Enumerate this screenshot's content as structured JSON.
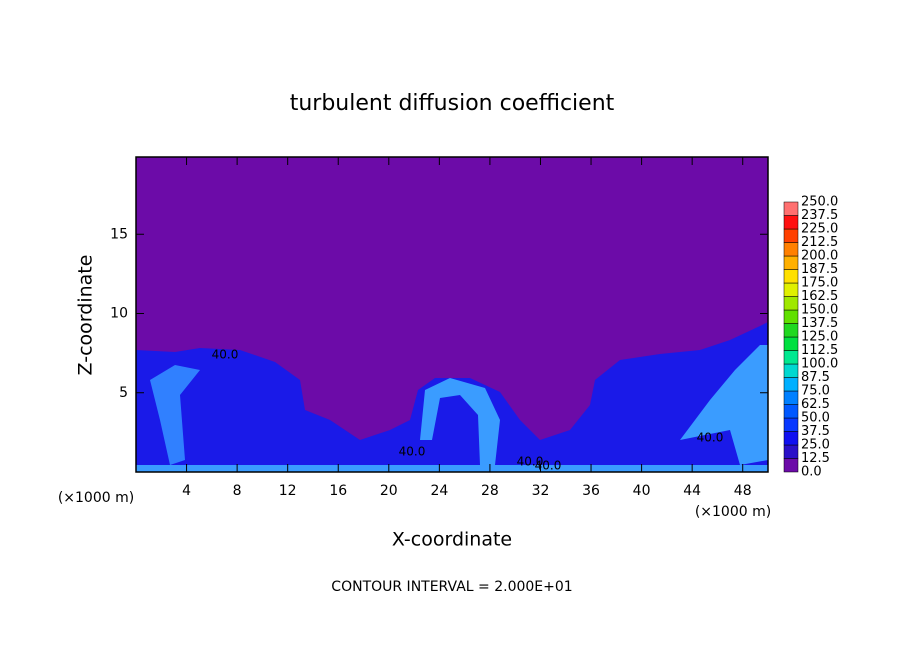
{
  "chart_data": {
    "type": "contour",
    "title": "turbulent diffusion coefficient",
    "x_label": "X-coordinate",
    "y_label": "Z-coordinate",
    "x_unit": "(×1000 m)",
    "x_unit_right": "(×1000 m)",
    "footer": "CONTOUR INTERVAL = 2.000E+01",
    "xlim": [
      0,
      50
    ],
    "ylim": [
      0,
      20
    ],
    "xticks": [
      4,
      8,
      12,
      16,
      20,
      24,
      28,
      32,
      36,
      40,
      44,
      48
    ],
    "yticks": [
      5,
      10,
      15
    ],
    "contour_labels": [
      "40.0",
      "40.0",
      "40.0",
      "40.0",
      "40.0"
    ],
    "levels": [
      {
        "value": 0,
        "label": "0.0"
      },
      {
        "value": 12.5,
        "label": "12.5"
      },
      {
        "value": 25,
        "label": "25.0"
      },
      {
        "value": 37.5,
        "label": "37.5"
      },
      {
        "value": 50,
        "label": "50.0"
      },
      {
        "value": 62.5,
        "label": "62.5"
      },
      {
        "value": 75,
        "label": "75.0"
      },
      {
        "value": 87.5,
        "label": "87.5"
      },
      {
        "value": 100,
        "label": "100.0"
      },
      {
        "value": 112.5,
        "label": "112.5"
      },
      {
        "value": 125,
        "label": "125.0"
      },
      {
        "value": 137.5,
        "label": "137.5"
      },
      {
        "value": 150,
        "label": "150.0"
      },
      {
        "value": 162.5,
        "label": "162.5"
      },
      {
        "value": 175,
        "label": "175.0"
      },
      {
        "value": 187.5,
        "label": "187.5"
      },
      {
        "value": 200,
        "label": "200.0"
      },
      {
        "value": 212.5,
        "label": "212.5"
      },
      {
        "value": 225,
        "label": "225.0"
      },
      {
        "value": 237.5,
        "label": "237.5"
      },
      {
        "value": 250,
        "label": "250.0"
      }
    ],
    "colors": [
      "#6c0ba8",
      "#2a10c8",
      "#1010f0",
      "#0838ff",
      "#0058ff",
      "#0080ff",
      "#00b0ff",
      "#00d8d0",
      "#00e890",
      "#00e040",
      "#20d820",
      "#60e000",
      "#a0e800",
      "#e0f000",
      "#ffe000",
      "#ffb000",
      "#ff8000",
      "#ff4000",
      "#ff1010",
      "#ff7070"
    ]
  }
}
